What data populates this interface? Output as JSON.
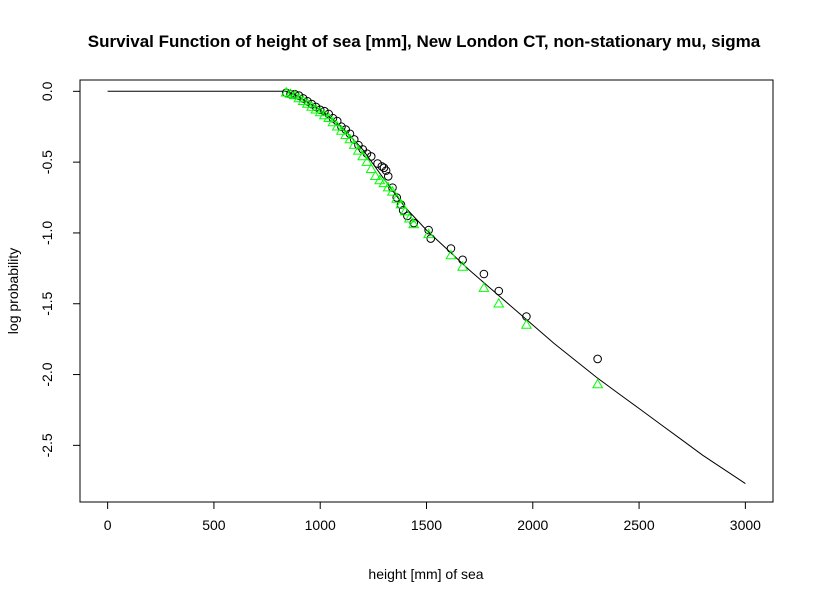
{
  "chart_data": {
    "type": "scatter",
    "title": "Survival Function of height of sea [mm], New London CT, non-stationary mu, sigma",
    "xlabel": "height [mm] of sea",
    "ylabel": "log probability",
    "xlim": [
      -130,
      3130
    ],
    "ylim": [
      -2.9,
      0.08
    ],
    "x_ticks": [
      0,
      500,
      1000,
      1500,
      2000,
      2500,
      3000
    ],
    "x_tick_labels": [
      "0",
      "500",
      "1000",
      "1500",
      "2000",
      "2500",
      "3000"
    ],
    "y_ticks": [
      0.0,
      -0.5,
      -1.0,
      -1.5,
      -2.0,
      -2.5
    ],
    "y_tick_labels": [
      "0.0",
      "-0.5",
      "-1.0",
      "-1.5",
      "-2.0",
      "-2.5"
    ],
    "grid": false,
    "series": [
      {
        "style": "line",
        "color": "#000000",
        "x": [
          0,
          500,
          800,
          840,
          900,
          1000,
          1100,
          1200,
          1300,
          1400,
          1500,
          1600,
          1700,
          1800,
          1900,
          2000,
          2100,
          2200,
          2300,
          2400,
          2500,
          2600,
          2700,
          2800,
          2900,
          3000
        ],
        "y": [
          0,
          0,
          0,
          0,
          -0.04,
          -0.13,
          -0.25,
          -0.41,
          -0.62,
          -0.82,
          -0.98,
          -1.12,
          -1.26,
          -1.39,
          -1.52,
          -1.65,
          -1.78,
          -1.9,
          -2.02,
          -2.13,
          -2.24,
          -2.35,
          -2.46,
          -2.57,
          -2.67,
          -2.77
        ]
      },
      {
        "style": "circle",
        "color": "#000000",
        "x": [
          840,
          860,
          880,
          900,
          920,
          940,
          960,
          980,
          1000,
          1020,
          1040,
          1060,
          1080,
          1100,
          1120,
          1140,
          1160,
          1180,
          1200,
          1220,
          1240,
          1270,
          1290,
          1300,
          1310,
          1320,
          1340,
          1360,
          1380,
          1390,
          1410,
          1440,
          1510,
          1520,
          1615,
          1670,
          1770,
          1840,
          1970,
          2305
        ],
        "y": [
          -0.01,
          -0.02,
          -0.02,
          -0.03,
          -0.05,
          -0.07,
          -0.09,
          -0.11,
          -0.13,
          -0.14,
          -0.16,
          -0.19,
          -0.21,
          -0.25,
          -0.27,
          -0.3,
          -0.34,
          -0.38,
          -0.41,
          -0.44,
          -0.46,
          -0.51,
          -0.53,
          -0.54,
          -0.56,
          -0.6,
          -0.68,
          -0.75,
          -0.8,
          -0.84,
          -0.88,
          -0.93,
          -0.98,
          -1.04,
          -1.11,
          -1.19,
          -1.29,
          -1.41,
          -1.59,
          -1.89
        ]
      },
      {
        "style": "triangle",
        "color": "#00ff00",
        "x": [
          840,
          860,
          880,
          900,
          920,
          940,
          960,
          980,
          1000,
          1020,
          1040,
          1060,
          1080,
          1100,
          1120,
          1140,
          1160,
          1180,
          1200,
          1220,
          1240,
          1260,
          1280,
          1300,
          1320,
          1340,
          1360,
          1380,
          1400,
          1420,
          1440,
          1510,
          1615,
          1670,
          1770,
          1840,
          1970,
          2305
        ],
        "y": [
          -0.01,
          -0.02,
          -0.03,
          -0.05,
          -0.07,
          -0.09,
          -0.11,
          -0.13,
          -0.15,
          -0.17,
          -0.19,
          -0.22,
          -0.25,
          -0.28,
          -0.31,
          -0.34,
          -0.38,
          -0.42,
          -0.46,
          -0.5,
          -0.55,
          -0.6,
          -0.63,
          -0.65,
          -0.68,
          -0.71,
          -0.76,
          -0.8,
          -0.85,
          -0.9,
          -0.94,
          -1.01,
          -1.16,
          -1.24,
          -1.39,
          -1.5,
          -1.65,
          -2.07
        ]
      }
    ]
  }
}
